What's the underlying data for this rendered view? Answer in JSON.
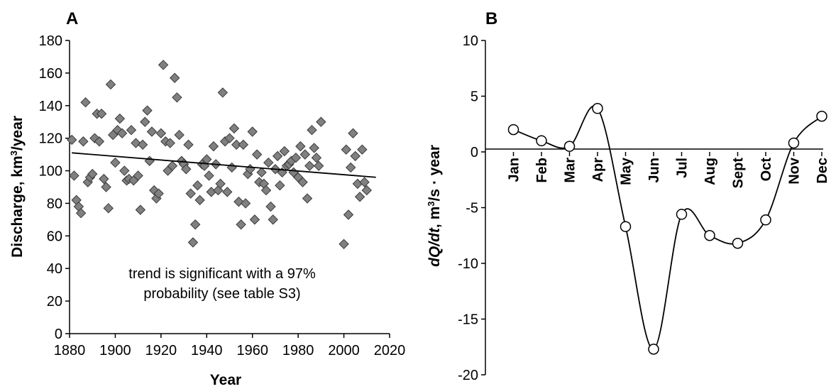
{
  "chart_data": [
    {
      "type": "scatter",
      "panel_label": "A",
      "xlabel": "Year",
      "ylabel_main": "Discharge, km",
      "ylabel_sup": "3",
      "ylabel_tail": "/year",
      "xlim": [
        1880,
        2020
      ],
      "ylim": [
        0,
        180
      ],
      "xticks": [
        "1880",
        "1900",
        "1920",
        "1940",
        "1960",
        "1980",
        "2000",
        "2020"
      ],
      "yticks": [
        "0",
        "20",
        "40",
        "60",
        "80",
        "100",
        "120",
        "140",
        "160",
        "180"
      ],
      "annotation_lines": [
        "trend is significant with a 97%",
        "probability (see table S3)"
      ],
      "trend": {
        "x": [
          1881,
          2014
        ],
        "y": [
          111,
          96
        ]
      },
      "marker_color": "#808080",
      "points": [
        [
          1881,
          119
        ],
        [
          1882,
          97
        ],
        [
          1883,
          82
        ],
        [
          1884,
          78
        ],
        [
          1885,
          74
        ],
        [
          1886,
          118
        ],
        [
          1887,
          142
        ],
        [
          1888,
          93
        ],
        [
          1889,
          96
        ],
        [
          1890,
          98
        ],
        [
          1891,
          120
        ],
        [
          1892,
          135
        ],
        [
          1893,
          118
        ],
        [
          1894,
          135
        ],
        [
          1895,
          95
        ],
        [
          1896,
          90
        ],
        [
          1897,
          77
        ],
        [
          1898,
          153
        ],
        [
          1899,
          122
        ],
        [
          1900,
          105
        ],
        [
          1901,
          125
        ],
        [
          1902,
          132
        ],
        [
          1903,
          123
        ],
        [
          1904,
          100
        ],
        [
          1905,
          94
        ],
        [
          1906,
          95
        ],
        [
          1907,
          125
        ],
        [
          1908,
          94
        ],
        [
          1909,
          117
        ],
        [
          1910,
          97
        ],
        [
          1911,
          76
        ],
        [
          1912,
          116
        ],
        [
          1913,
          130
        ],
        [
          1914,
          137
        ],
        [
          1915,
          106
        ],
        [
          1916,
          124
        ],
        [
          1917,
          88
        ],
        [
          1918,
          83
        ],
        [
          1919,
          86
        ],
        [
          1920,
          123
        ],
        [
          1921,
          165
        ],
        [
          1922,
          118
        ],
        [
          1923,
          100
        ],
        [
          1924,
          117
        ],
        [
          1925,
          103
        ],
        [
          1926,
          157
        ],
        [
          1927,
          145
        ],
        [
          1928,
          122
        ],
        [
          1929,
          106
        ],
        [
          1930,
          104
        ],
        [
          1931,
          101
        ],
        [
          1932,
          116
        ],
        [
          1933,
          86
        ],
        [
          1934,
          56
        ],
        [
          1935,
          67
        ],
        [
          1936,
          91
        ],
        [
          1937,
          82
        ],
        [
          1938,
          104
        ],
        [
          1939,
          103
        ],
        [
          1940,
          107
        ],
        [
          1941,
          97
        ],
        [
          1942,
          87
        ],
        [
          1943,
          115
        ],
        [
          1944,
          104
        ],
        [
          1945,
          88
        ],
        [
          1946,
          92
        ],
        [
          1947,
          148
        ],
        [
          1948,
          118
        ],
        [
          1949,
          87
        ],
        [
          1950,
          120
        ],
        [
          1951,
          102
        ],
        [
          1952,
          126
        ],
        [
          1953,
          116
        ],
        [
          1954,
          81
        ],
        [
          1955,
          67
        ],
        [
          1956,
          116
        ],
        [
          1957,
          80
        ],
        [
          1958,
          98
        ],
        [
          1959,
          101
        ],
        [
          1960,
          124
        ],
        [
          1961,
          70
        ],
        [
          1962,
          110
        ],
        [
          1963,
          93
        ],
        [
          1964,
          99
        ],
        [
          1965,
          92
        ],
        [
          1966,
          88
        ],
        [
          1967,
          105
        ],
        [
          1968,
          78
        ],
        [
          1969,
          70
        ],
        [
          1970,
          101
        ],
        [
          1971,
          109
        ],
        [
          1972,
          91
        ],
        [
          1973,
          99
        ],
        [
          1974,
          112
        ],
        [
          1975,
          103
        ],
        [
          1976,
          104
        ],
        [
          1977,
          106
        ],
        [
          1978,
          99
        ],
        [
          1979,
          108
        ],
        [
          1980,
          96
        ],
        [
          1981,
          115
        ],
        [
          1982,
          93
        ],
        [
          1983,
          110
        ],
        [
          1984,
          83
        ],
        [
          1985,
          103
        ],
        [
          1986,
          125
        ],
        [
          1987,
          114
        ],
        [
          1988,
          108
        ],
        [
          1989,
          103
        ],
        [
          1990,
          130
        ],
        [
          2000,
          55
        ],
        [
          2001,
          113
        ],
        [
          2002,
          73
        ],
        [
          2003,
          102
        ],
        [
          2004,
          123
        ],
        [
          2005,
          109
        ],
        [
          2006,
          92
        ],
        [
          2007,
          84
        ],
        [
          2008,
          113
        ],
        [
          2009,
          93
        ],
        [
          2010,
          88
        ]
      ]
    },
    {
      "type": "line",
      "panel_label": "B",
      "ylabel_italic": "dQ/dt",
      "ylabel_rest_a": ", m",
      "ylabel_sup": "3",
      "ylabel_rest_b": "/s · year",
      "categories": [
        "Jan",
        "Feb",
        "Mar",
        "Apr",
        "May",
        "Jun",
        "Jul",
        "Aug",
        "Sept",
        "Oct",
        "Nov",
        "Dec"
      ],
      "values": [
        2.0,
        1.0,
        0.5,
        3.9,
        -6.7,
        -17.7,
        -5.6,
        -7.5,
        -8.2,
        -6.1,
        0.8,
        3.2
      ],
      "ylim": [
        -20,
        10
      ],
      "yticks": [
        "10",
        "5",
        "0",
        "-5",
        "-10",
        "-15",
        "-20"
      ],
      "smooth": true,
      "marker": "open-circle"
    }
  ]
}
